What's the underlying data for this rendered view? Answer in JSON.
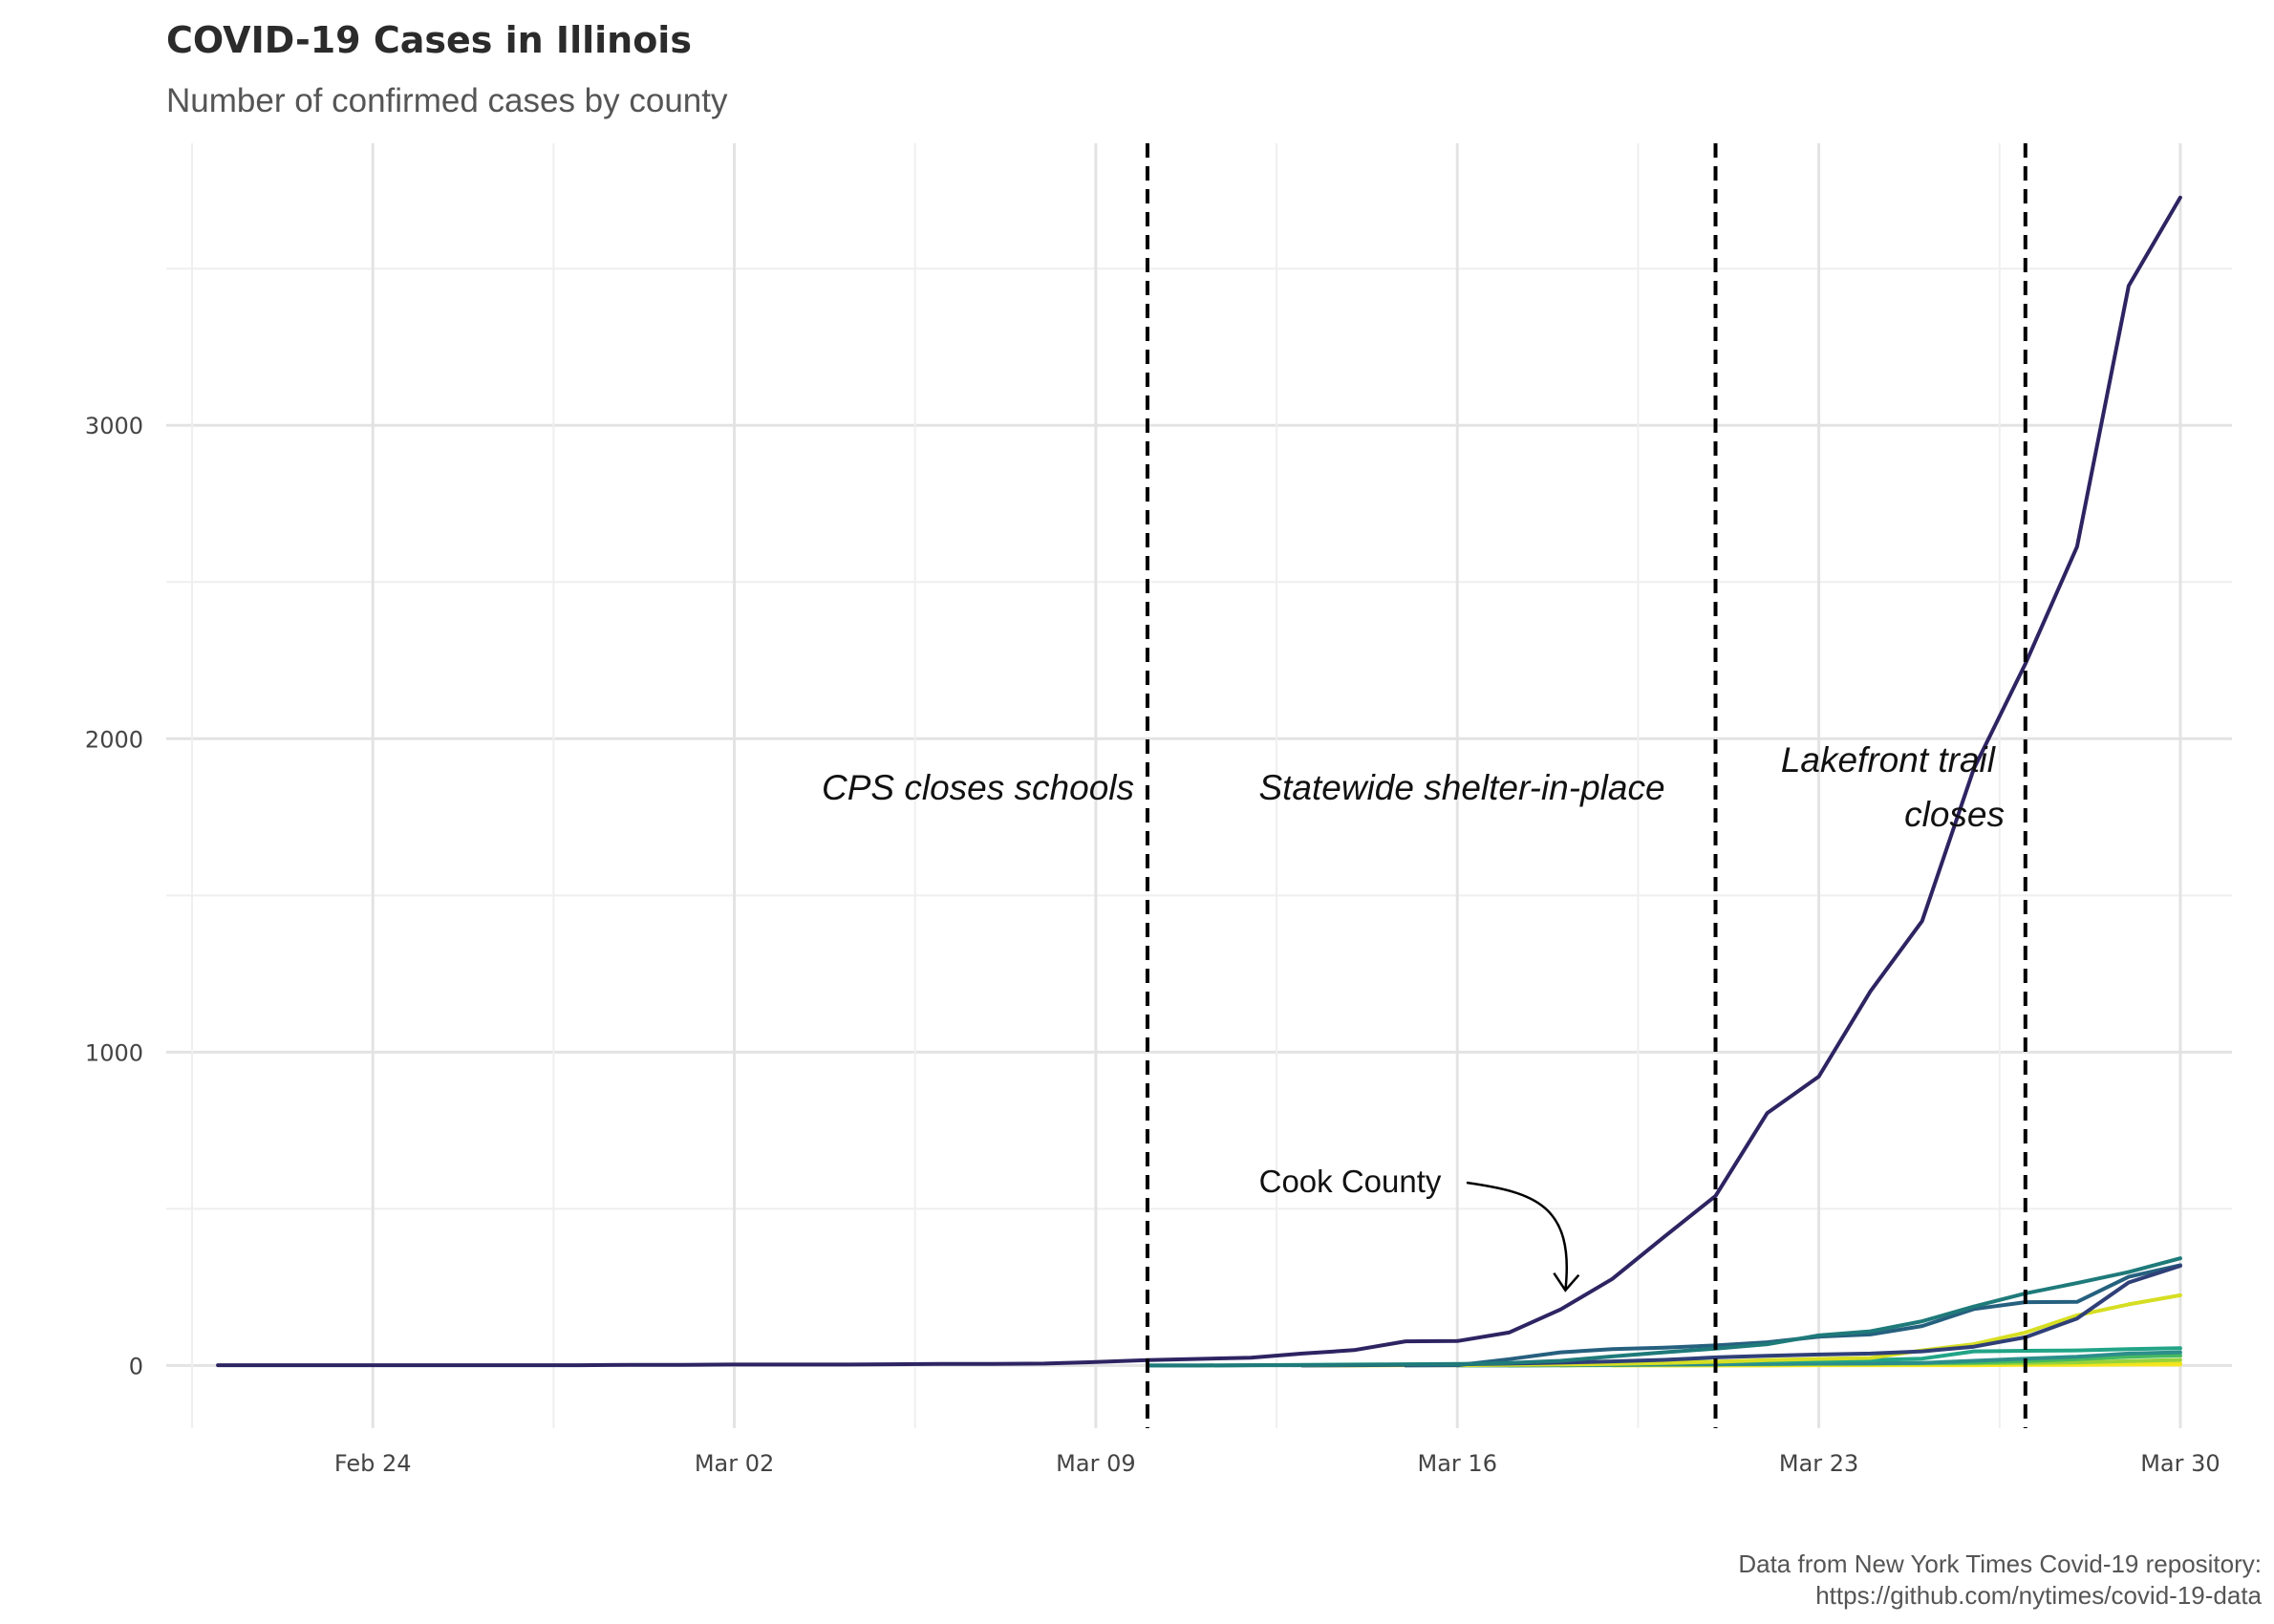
{
  "chart_data": {
    "type": "line",
    "title": "COVID-19 Cases in Illinois",
    "subtitle": "Number of confirmed cases by county",
    "xlabel": "",
    "ylabel": "",
    "caption_lines": [
      "Data from New York Times Covid-19 repository:",
      "https://github.com/nytimes/covid-19-data"
    ],
    "x_tick_labels": [
      "Feb 24",
      "Mar 02",
      "Mar 09",
      "Mar 16",
      "Mar 23",
      "Mar 30"
    ],
    "x_ticks": [
      "2020-02-24",
      "2020-03-02",
      "2020-03-09",
      "2020-03-16",
      "2020-03-23",
      "2020-03-30"
    ],
    "xlim": [
      "2020-02-20",
      "2020-03-31"
    ],
    "y_tick_labels": [
      "0",
      "1000",
      "2000",
      "3000"
    ],
    "y_ticks": [
      0,
      1000,
      2000,
      3000
    ],
    "ylim": [
      -200,
      3900
    ],
    "grid": true,
    "legend": "none",
    "event_lines": [
      {
        "date": "2020-03-10",
        "label": "CPS closes schools"
      },
      {
        "date": "2020-03-21",
        "label": "Statewide shelter-in-place"
      },
      {
        "date": "2020-03-27",
        "label": "Lakefront trail closes"
      }
    ],
    "annotation_labels": {
      "cps": "CPS closes schools",
      "shelter": "Statewide shelter-in-place",
      "lakefront_line1": "Lakefront trail",
      "lakefront_line2": "closes"
    },
    "callout": {
      "label": "Cook County",
      "date": "2020-03-18",
      "value": 179
    },
    "series": [
      {
        "color": "#2d2462",
        "x": [
          "2020-02-21",
          "2020-02-22",
          "2020-02-23",
          "2020-02-24",
          "2020-02-25",
          "2020-02-26",
          "2020-02-27",
          "2020-02-28",
          "2020-02-29",
          "2020-03-01",
          "2020-03-02",
          "2020-03-03",
          "2020-03-04",
          "2020-03-05",
          "2020-03-06",
          "2020-03-07",
          "2020-03-08",
          "2020-03-09",
          "2020-03-10",
          "2020-03-11",
          "2020-03-12",
          "2020-03-13",
          "2020-03-14",
          "2020-03-15",
          "2020-03-16",
          "2020-03-17",
          "2020-03-18",
          "2020-03-19",
          "2020-03-20",
          "2020-03-21",
          "2020-03-22",
          "2020-03-23",
          "2020-03-24",
          "2020-03-25",
          "2020-03-26",
          "2020-03-27",
          "2020-03-28",
          "2020-03-29",
          "2020-03-30"
        ],
        "y": [
          1,
          1,
          1,
          1,
          1,
          1,
          1,
          1,
          2,
          2,
          3,
          3,
          3,
          4,
          5,
          5,
          6,
          11,
          17,
          21,
          25,
          38,
          49,
          77,
          78,
          105,
          179,
          276,
          410,
          541,
          805,
          922,
          1194,
          1418,
          1904,
          2239,
          2613,
          3445,
          3727
        ]
      },
      {
        "color": "#1f7a7a",
        "x": [
          "2020-03-10",
          "2020-03-11",
          "2020-03-12",
          "2020-03-13",
          "2020-03-14",
          "2020-03-15",
          "2020-03-16",
          "2020-03-17",
          "2020-03-18",
          "2020-03-19",
          "2020-03-20",
          "2020-03-21",
          "2020-03-22",
          "2020-03-23",
          "2020-03-24",
          "2020-03-25",
          "2020-03-26",
          "2020-03-27",
          "2020-03-28",
          "2020-03-29",
          "2020-03-30"
        ],
        "y": [
          0,
          0,
          1,
          1,
          2,
          3,
          4,
          8,
          15,
          29,
          42,
          54,
          68,
          96,
          109,
          141,
          188,
          230,
          263,
          298,
          342
        ]
      },
      {
        "color": "#2f3f78",
        "x": [
          "2020-03-13",
          "2020-03-14",
          "2020-03-15",
          "2020-03-16",
          "2020-03-17",
          "2020-03-18",
          "2020-03-19",
          "2020-03-20",
          "2020-03-21",
          "2020-03-22",
          "2020-03-23",
          "2020-03-24",
          "2020-03-25",
          "2020-03-26",
          "2020-03-27",
          "2020-03-28",
          "2020-03-29",
          "2020-03-30"
        ],
        "y": [
          0,
          1,
          2,
          4,
          6,
          9,
          13,
          18,
          26,
          31,
          35,
          38,
          45,
          60,
          90,
          150,
          265,
          318
        ]
      },
      {
        "color": "#26607f",
        "x": [
          "2020-03-15",
          "2020-03-16",
          "2020-03-17",
          "2020-03-18",
          "2020-03-19",
          "2020-03-20",
          "2020-03-21",
          "2020-03-22",
          "2020-03-23",
          "2020-03-24",
          "2020-03-25",
          "2020-03-26",
          "2020-03-27",
          "2020-03-28",
          "2020-03-29",
          "2020-03-30"
        ],
        "y": [
          0,
          1,
          20,
          42,
          52,
          57,
          64,
          74,
          92,
          99,
          126,
          180,
          202,
          203,
          283,
          320
        ]
      },
      {
        "color": "#d6de22",
        "x": [
          "2020-03-13",
          "2020-03-14",
          "2020-03-15",
          "2020-03-16",
          "2020-03-17",
          "2020-03-18",
          "2020-03-19",
          "2020-03-20",
          "2020-03-21",
          "2020-03-22",
          "2020-03-23",
          "2020-03-24",
          "2020-03-25",
          "2020-03-26",
          "2020-03-27",
          "2020-03-28",
          "2020-03-29",
          "2020-03-30"
        ],
        "y": [
          0,
          0,
          1,
          1,
          2,
          3,
          5,
          8,
          12,
          17,
          21,
          24,
          48,
          68,
          105,
          160,
          195,
          224
        ]
      },
      {
        "color": "#22a487",
        "x": [
          "2020-03-10",
          "2020-03-11",
          "2020-03-12",
          "2020-03-13",
          "2020-03-14",
          "2020-03-15",
          "2020-03-16",
          "2020-03-17",
          "2020-03-18",
          "2020-03-19",
          "2020-03-20",
          "2020-03-21",
          "2020-03-22",
          "2020-03-23",
          "2020-03-24",
          "2020-03-25",
          "2020-03-26",
          "2020-03-27",
          "2020-03-28",
          "2020-03-29",
          "2020-03-30"
        ],
        "y": [
          0,
          0,
          1,
          2,
          3,
          4,
          5,
          6,
          8,
          9,
          10,
          12,
          14,
          15,
          17,
          22,
          45,
          47,
          48,
          52,
          55
        ]
      },
      {
        "color": "#2c8e8b",
        "x": [
          "2020-03-16",
          "2020-03-17",
          "2020-03-18",
          "2020-03-19",
          "2020-03-20",
          "2020-03-21",
          "2020-03-22",
          "2020-03-23",
          "2020-03-24",
          "2020-03-25",
          "2020-03-26",
          "2020-03-27",
          "2020-03-28",
          "2020-03-29",
          "2020-03-30"
        ],
        "y": [
          0,
          0,
          1,
          2,
          3,
          4,
          5,
          6,
          7,
          8,
          15,
          22,
          28,
          38,
          42
        ]
      },
      {
        "color": "#46b95f",
        "x": [
          "2020-03-17",
          "2020-03-18",
          "2020-03-19",
          "2020-03-20",
          "2020-03-21",
          "2020-03-22",
          "2020-03-23",
          "2020-03-24",
          "2020-03-25",
          "2020-03-26",
          "2020-03-27",
          "2020-03-28",
          "2020-03-29",
          "2020-03-30"
        ],
        "y": [
          0,
          1,
          2,
          3,
          4,
          5,
          6,
          7,
          8,
          9,
          14,
          20,
          28,
          32
        ]
      },
      {
        "color": "#96d23c",
        "x": [
          "2020-03-18",
          "2020-03-19",
          "2020-03-20",
          "2020-03-21",
          "2020-03-22",
          "2020-03-23",
          "2020-03-24",
          "2020-03-25",
          "2020-03-26",
          "2020-03-27",
          "2020-03-28",
          "2020-03-29",
          "2020-03-30"
        ],
        "y": [
          0,
          1,
          2,
          3,
          4,
          5,
          5,
          6,
          7,
          8,
          10,
          14,
          18
        ]
      },
      {
        "color": "#f0e41c",
        "x": [
          "2020-03-19",
          "2020-03-20",
          "2020-03-21",
          "2020-03-22",
          "2020-03-23",
          "2020-03-24",
          "2020-03-25",
          "2020-03-26",
          "2020-03-27",
          "2020-03-28",
          "2020-03-29",
          "2020-03-30"
        ],
        "y": [
          0,
          0,
          1,
          1,
          2,
          2,
          3,
          3,
          4,
          5,
          6,
          7
        ]
      },
      {
        "color": "#fde725",
        "x": [
          "2020-03-20",
          "2020-03-21",
          "2020-03-22",
          "2020-03-23",
          "2020-03-24",
          "2020-03-25",
          "2020-03-26",
          "2020-03-27",
          "2020-03-28",
          "2020-03-29",
          "2020-03-30"
        ],
        "y": [
          0,
          0,
          0,
          1,
          1,
          1,
          1,
          2,
          2,
          3,
          3
        ]
      }
    ]
  }
}
